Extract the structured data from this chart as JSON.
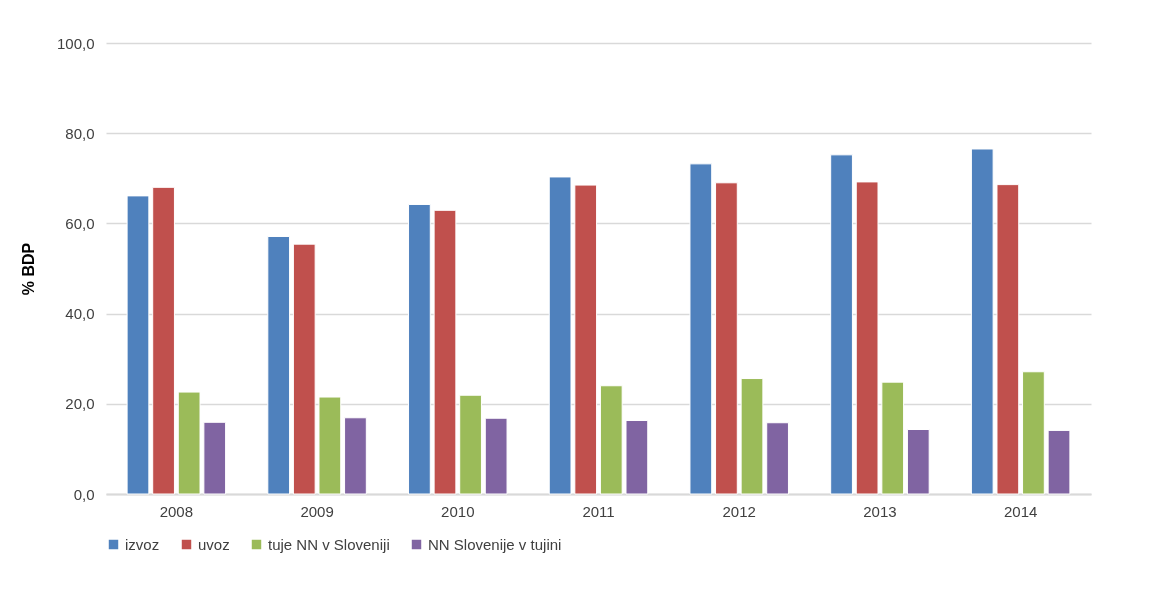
{
  "chart_data": {
    "type": "bar",
    "ylabel": "% BDP",
    "categories": [
      "2008",
      "2009",
      "2010",
      "2011",
      "2012",
      "2013",
      "2014"
    ],
    "series": [
      {
        "name": "izvoz",
        "color": "#4f81bd",
        "values": [
          66.1,
          57.1,
          64.2,
          70.3,
          73.2,
          75.2,
          76.5
        ]
      },
      {
        "name": "uvoz",
        "color": "#c0504d",
        "values": [
          68.0,
          55.4,
          62.9,
          68.5,
          69.0,
          69.2,
          68.6
        ]
      },
      {
        "name": "tuje NN v Sloveniji",
        "color": "#9bbb59",
        "values": [
          22.6,
          21.5,
          21.9,
          24.0,
          25.6,
          24.8,
          27.1
        ]
      },
      {
        "name": "NN Slovenije v tujini",
        "color": "#8064a2",
        "values": [
          15.9,
          16.9,
          16.8,
          16.3,
          15.8,
          14.3,
          14.1
        ]
      }
    ],
    "ylim": [
      0,
      100
    ],
    "yticks": [
      {
        "value": 0,
        "label": "0,0"
      },
      {
        "value": 20,
        "label": "20,0"
      },
      {
        "value": 40,
        "label": "40,0"
      },
      {
        "value": 60,
        "label": "60,0"
      },
      {
        "value": 80,
        "label": "80,0"
      },
      {
        "value": 100,
        "label": "100,0"
      }
    ],
    "grid": "y",
    "legend": "bottom"
  }
}
